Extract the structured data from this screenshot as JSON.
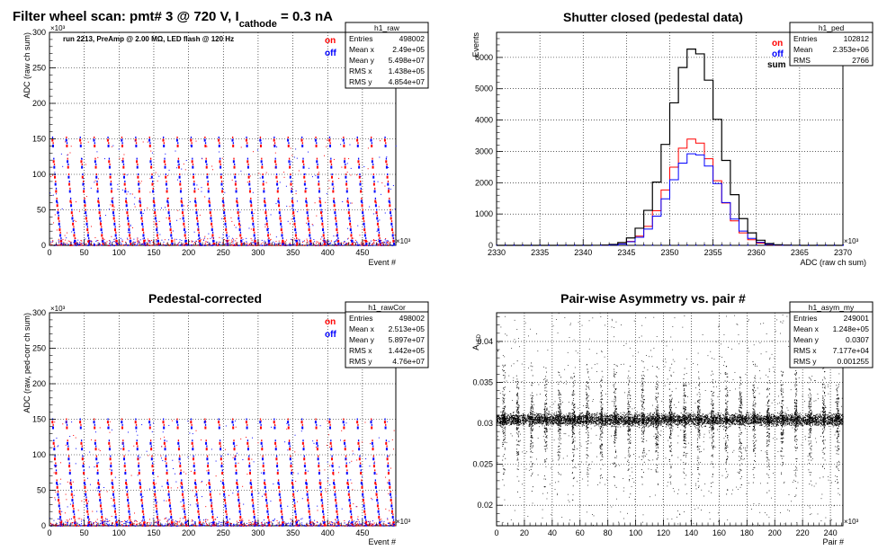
{
  "window": {
    "title": "Filter wheel scan: pmt#   3 @   720 V, I",
    "title_sub": "cathode",
    "title_tail": " = 0.3 nA"
  },
  "colors": {
    "on": "#ff0000",
    "off": "#0000ff",
    "sum": "#000000",
    "bg": "#ffffff"
  },
  "chart_data": [
    {
      "id": "raw",
      "type": "scatter",
      "title": "",
      "note": "run 2213, PreAmp @ 2.00 MΩ, LED flash @  120 Hz",
      "xlabel": "Event #",
      "ylabel": "ADC (raw ch sum)",
      "x_multiplier": "×10³",
      "y_multiplier": "×10³",
      "xlim": [
        0,
        498
      ],
      "ylim": [
        0,
        300
      ],
      "xticks": [
        0,
        50,
        100,
        150,
        200,
        250,
        300,
        350,
        400,
        450
      ],
      "yticks": [
        0,
        50,
        100,
        150,
        200,
        250,
        300
      ],
      "legend": [
        {
          "name": "on",
          "color": "#ff0000"
        },
        {
          "name": "off",
          "color": "#0000ff"
        }
      ],
      "stats": {
        "name": "h1_raw",
        "rows": [
          [
            "Entries",
            "498002"
          ],
          [
            "Mean x",
            "2.49e+05"
          ],
          [
            "Mean y",
            "5.498e+07"
          ],
          [
            "RMS x",
            "1.438e+05"
          ],
          [
            "RMS y",
            "4.854e+07"
          ]
        ]
      },
      "levels": [
        148,
        140,
        118,
        110,
        96,
        86,
        76,
        62,
        56,
        46,
        38,
        30,
        22,
        14,
        6,
        2
      ],
      "periods": 25
    },
    {
      "id": "ped",
      "type": "line",
      "title": "Shutter closed (pedestal data)",
      "xlabel": "ADC (raw ch sum)",
      "ylabel": "Events",
      "x_multiplier": "×10³",
      "xlim": [
        2330,
        2370
      ],
      "ylim": [
        0,
        6800
      ],
      "xticks": [
        2330,
        2335,
        2340,
        2345,
        2350,
        2355,
        2360,
        2365,
        2370
      ],
      "yticks": [
        0,
        1000,
        2000,
        3000,
        4000,
        5000,
        6000
      ],
      "legend": [
        {
          "name": "on",
          "color": "#ff0000"
        },
        {
          "name": "off",
          "color": "#0000ff"
        },
        {
          "name": "sum",
          "color": "#000000"
        }
      ],
      "stats": {
        "name": "h1_ped",
        "rows": [
          [
            "Entries",
            "102812"
          ],
          [
            "Mean",
            "2.353e+06"
          ],
          [
            "RMS",
            "2766"
          ]
        ]
      },
      "series": [
        {
          "name": "on",
          "mean": 2352.7,
          "sigma": 2.8,
          "peak": 3400
        },
        {
          "name": "off",
          "mean": 2352.9,
          "sigma": 2.9,
          "peak": 2950
        },
        {
          "name": "sum",
          "mean": 2352.8,
          "sigma": 2.85,
          "peak": 6300
        }
      ]
    },
    {
      "id": "rawCor",
      "type": "scatter",
      "title": "Pedestal-corrected",
      "xlabel": "Event #",
      "ylabel": "ADC (raw, ped-corr ch sum)",
      "x_multiplier": "×10³",
      "y_multiplier": "×10³",
      "xlim": [
        0,
        498
      ],
      "ylim": [
        0,
        300
      ],
      "xticks": [
        0,
        50,
        100,
        150,
        200,
        250,
        300,
        350,
        400,
        450
      ],
      "yticks": [
        0,
        50,
        100,
        150,
        200,
        250,
        300
      ],
      "legend": [
        {
          "name": "on",
          "color": "#ff0000"
        },
        {
          "name": "off",
          "color": "#0000ff"
        }
      ],
      "stats": {
        "name": "h1_rawCor",
        "rows": [
          [
            "Entries",
            "498002"
          ],
          [
            "Mean x",
            "2.513e+05"
          ],
          [
            "Mean y",
            "5.897e+07"
          ],
          [
            "RMS x",
            "1.442e+05"
          ],
          [
            "RMS y",
            "4.76e+07"
          ]
        ]
      },
      "levels": [
        146,
        138,
        116,
        108,
        94,
        84,
        74,
        60,
        54,
        44,
        36,
        28,
        20,
        12,
        4,
        1
      ],
      "periods": 25
    },
    {
      "id": "asym",
      "type": "scatter",
      "title": "Pair-wise Asymmetry vs. pair #",
      "xlabel": "Pair #",
      "ylabel": "A_LED",
      "x_multiplier": "×10³",
      "xlim": [
        0,
        249
      ],
      "ylim": [
        0.0175,
        0.0435
      ],
      "xticks": [
        0,
        20,
        40,
        60,
        80,
        100,
        120,
        140,
        160,
        180,
        200,
        220,
        240
      ],
      "yticks": [
        0.02,
        0.025,
        0.03,
        0.035,
        0.04
      ],
      "stats": {
        "name": "h1_asym_my",
        "rows": [
          [
            "Entries",
            "249001"
          ],
          [
            "Mean x",
            "1.248e+05"
          ],
          [
            "Mean y",
            "0.0307"
          ],
          [
            "RMS x",
            "7.177e+04"
          ],
          [
            "RMS y",
            "0.001255"
          ]
        ]
      },
      "baseline": 0.0305,
      "band_halfwidth": 0.0009,
      "spike_period": 10
    }
  ]
}
